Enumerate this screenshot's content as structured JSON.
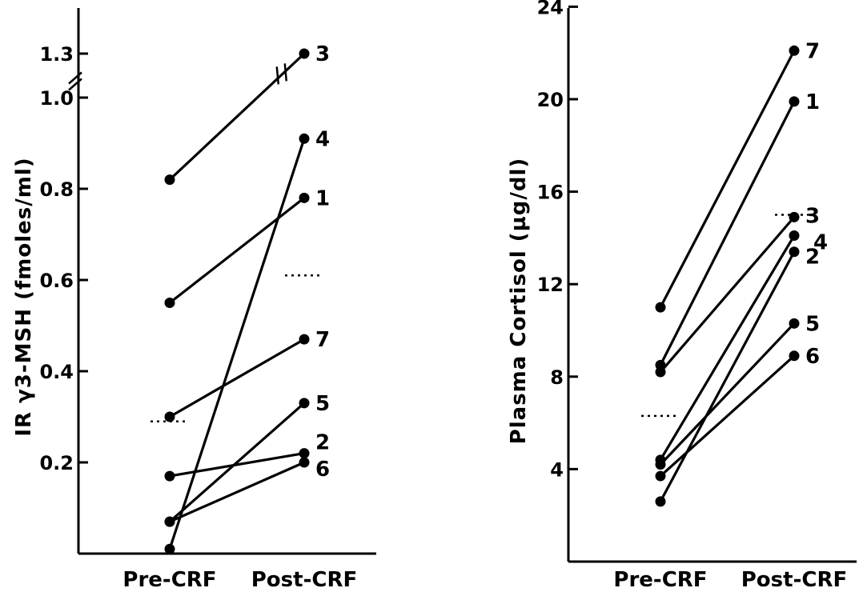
{
  "chart_data": [
    {
      "type": "line",
      "ylabel": "IR γ3-MSH (fmoles/ml)",
      "categories": [
        "Pre-CRF",
        "Post-CRF"
      ],
      "yticks": [
        {
          "value": 0.2,
          "label": "0.2"
        },
        {
          "value": 0.4,
          "label": "0.4"
        },
        {
          "value": 0.6,
          "label": "0.6"
        },
        {
          "value": 0.8,
          "label": "0.8"
        },
        {
          "value": 1.0,
          "label": "1.0"
        },
        {
          "value": 1.3,
          "label": "1.3"
        }
      ],
      "ylim": [
        0,
        1.3
      ],
      "axis_break": [
        1.0,
        1.3
      ],
      "mean_markers": [
        {
          "category": "Pre-CRF",
          "value": 0.29
        },
        {
          "category": "Post-CRF",
          "value": 0.61
        }
      ],
      "series": [
        {
          "name": "3",
          "values": [
            0.82,
            1.3
          ]
        },
        {
          "name": "4",
          "values": [
            0.01,
            0.91
          ]
        },
        {
          "name": "1",
          "values": [
            0.55,
            0.78
          ]
        },
        {
          "name": "7",
          "values": [
            0.3,
            0.47
          ]
        },
        {
          "name": "5",
          "values": [
            0.07,
            0.33
          ]
        },
        {
          "name": "2",
          "values": [
            0.17,
            0.22
          ]
        },
        {
          "name": "6",
          "values": [
            0.07,
            0.2
          ]
        }
      ]
    },
    {
      "type": "line",
      "ylabel": "Plasma Cortisol (µg/dl)",
      "categories": [
        "Pre-CRF",
        "Post-CRF"
      ],
      "yticks": [
        {
          "value": 4,
          "label": "4"
        },
        {
          "value": 8,
          "label": "8"
        },
        {
          "value": 12,
          "label": "12"
        },
        {
          "value": 16,
          "label": "16"
        },
        {
          "value": 20,
          "label": "20"
        },
        {
          "value": 24,
          "label": "24"
        }
      ],
      "ylim": [
        0,
        24
      ],
      "mean_markers": [
        {
          "category": "Pre-CRF",
          "value": 6.3
        },
        {
          "category": "Post-CRF",
          "value": 15.0
        }
      ],
      "series": [
        {
          "name": "7",
          "values": [
            11.0,
            22.1
          ]
        },
        {
          "name": "1",
          "values": [
            8.5,
            19.9
          ]
        },
        {
          "name": "3",
          "values": [
            8.2,
            14.9
          ]
        },
        {
          "name": "4",
          "values": [
            4.4,
            14.1
          ]
        },
        {
          "name": "2",
          "values": [
            2.6,
            13.4
          ]
        },
        {
          "name": "5",
          "values": [
            4.2,
            10.3
          ]
        },
        {
          "name": "6",
          "values": [
            3.7,
            8.9
          ]
        }
      ]
    }
  ]
}
